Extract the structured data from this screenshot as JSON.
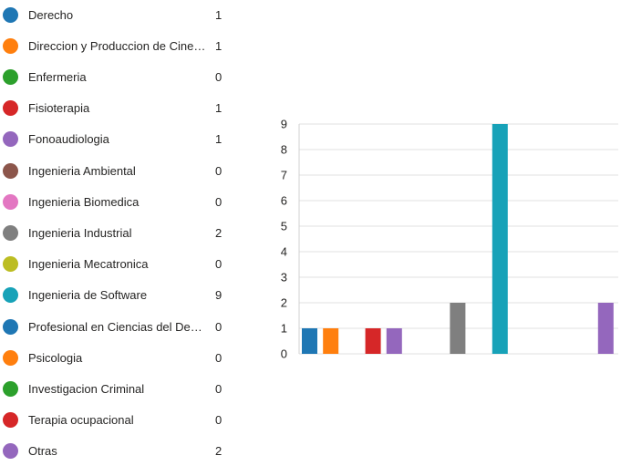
{
  "chart_data": {
    "type": "bar",
    "title": "",
    "xlabel": "",
    "ylabel": "",
    "ylim": [
      0,
      9
    ],
    "yticks": [
      "0",
      "1",
      "2",
      "3",
      "4",
      "5",
      "6",
      "7",
      "8",
      "9"
    ],
    "grid": true,
    "legend_placement": "left",
    "categories": [
      {
        "label": "Derecho",
        "value": 1,
        "color": "#1f77b4"
      },
      {
        "label": "Direccion y Produccion de Cine ...",
        "value": 1,
        "color": "#ff7f0e"
      },
      {
        "label": "Enfermeria",
        "value": 0,
        "color": "#2ca02c"
      },
      {
        "label": "Fisioterapia",
        "value": 1,
        "color": "#d62728"
      },
      {
        "label": "Fonoaudiologia",
        "value": 1,
        "color": "#9467bd"
      },
      {
        "label": "Ingenieria Ambiental",
        "value": 0,
        "color": "#8c564b"
      },
      {
        "label": "Ingenieria Biomedica",
        "value": 0,
        "color": "#e377c2"
      },
      {
        "label": "Ingenieria Industrial",
        "value": 2,
        "color": "#7f7f7f"
      },
      {
        "label": "Ingenieria Mecatronica",
        "value": 0,
        "color": "#bcbd22"
      },
      {
        "label": "Ingenieria de Software",
        "value": 9,
        "color": "#17a2b8"
      },
      {
        "label": "Profesional en Ciencias del Dep...",
        "value": 0,
        "color": "#1f77b4"
      },
      {
        "label": "Psicologia",
        "value": 0,
        "color": "#ff7f0e"
      },
      {
        "label": "Investigacion Criminal",
        "value": 0,
        "color": "#2ca02c"
      },
      {
        "label": "Terapia ocupacional",
        "value": 0,
        "color": "#d62728"
      },
      {
        "label": "Otras",
        "value": 2,
        "color": "#9467bd"
      }
    ]
  }
}
